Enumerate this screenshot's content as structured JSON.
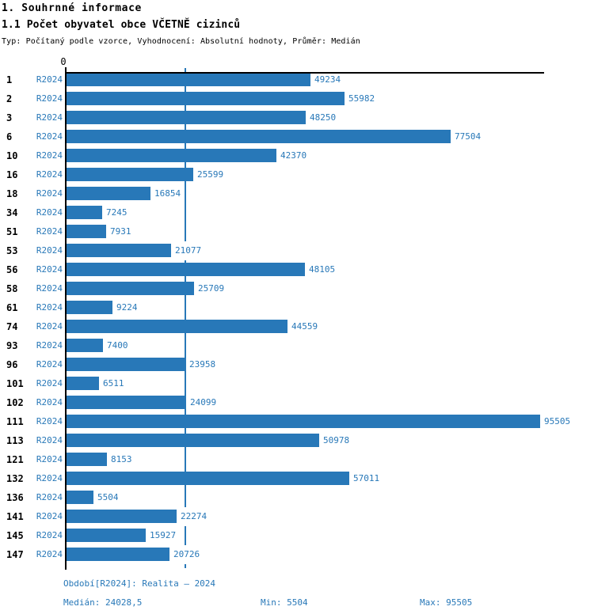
{
  "header": {
    "title": "1. Souhrnné informace",
    "subtitle": "1.1 Počet obyvatel obce VČETNĚ cizinců",
    "meta": "Typ: Počítaný podle vzorce, Vyhodnocení: Absolutní hodnoty, Průměr: Medián"
  },
  "chart_data": {
    "type": "bar",
    "orientation": "horizontal",
    "title": "1.1 Počet obyvatel obce VČETNĚ cizinců",
    "series_label": "R2024",
    "categories": [
      "1",
      "2",
      "3",
      "6",
      "10",
      "16",
      "18",
      "34",
      "51",
      "53",
      "56",
      "58",
      "61",
      "74",
      "93",
      "96",
      "101",
      "102",
      "111",
      "113",
      "121",
      "132",
      "136",
      "141",
      "145",
      "147"
    ],
    "values": [
      49234,
      55982,
      48250,
      77504,
      42370,
      25599,
      16854,
      7245,
      7931,
      21077,
      48105,
      25709,
      9224,
      44559,
      7400,
      23958,
      6511,
      24099,
      95505,
      50978,
      8153,
      57011,
      5504,
      22274,
      15927,
      20726
    ],
    "x_axis": {
      "origin_label": "0",
      "min": 0,
      "max_value": 95505
    },
    "median": 24028.5,
    "min": 5504,
    "max": 95505,
    "grid": "median-line-only",
    "legend": "none",
    "bar_color": "#2878b8"
  },
  "footer": {
    "period": "Období[R2024]: Realita – 2024",
    "median": "Medián: 24028,5",
    "min": "Min: 5504",
    "max": "Max: 95505"
  },
  "colors": {
    "accent_blue": "#2878b8",
    "axis_black": "#000000"
  }
}
